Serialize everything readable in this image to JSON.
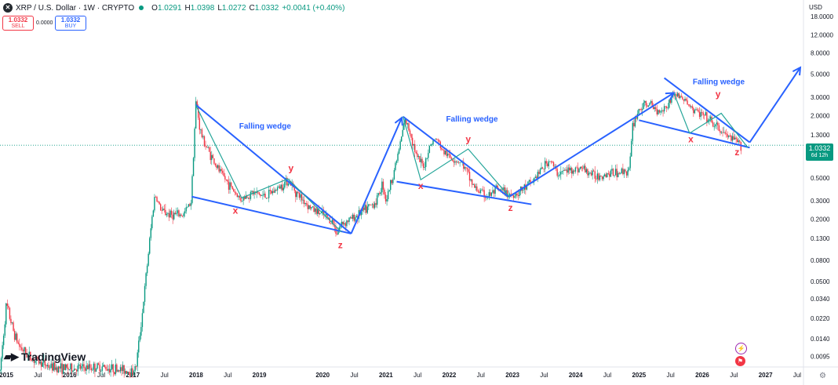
{
  "header": {
    "symbol": "XRP / U.S. Dollar · 1W · CRYPTO",
    "o_label": "O",
    "o": "1.0291",
    "h_label": "H",
    "h": "1.0398",
    "l_label": "L",
    "l": "1.0272",
    "c_label": "C",
    "c": "1.0332",
    "change": "+0.0041 (+0.40%)"
  },
  "trade": {
    "sell_price": "1.0332",
    "sell_label": "SELL",
    "spread": "0.0000",
    "buy_price": "1.0332",
    "buy_label": "BUY"
  },
  "price_tag": {
    "price": "1.0332",
    "countdown": "6d 12h"
  },
  "currency": "USD",
  "brand": "TradingView",
  "colors": {
    "up": "#089981",
    "down": "#f23645",
    "annotation": "#2962ff",
    "inner_line": "#26a69a",
    "label_red": "#f23645"
  },
  "chart_data": {
    "type": "line",
    "scale": "log",
    "ylim": [
      0.0075,
      26
    ],
    "xlim": [
      2014.9,
      2027.6
    ],
    "y_ticks": [
      {
        "v": 18,
        "label": "18.0000"
      },
      {
        "v": 12,
        "label": "12.0000"
      },
      {
        "v": 8,
        "label": "8.0000"
      },
      {
        "v": 5,
        "label": "5.0000"
      },
      {
        "v": 3,
        "label": "3.0000"
      },
      {
        "v": 2,
        "label": "2.0000"
      },
      {
        "v": 1.3,
        "label": "1.3000"
      },
      {
        "v": 0.8,
        "label": "0.8000"
      },
      {
        "v": 0.5,
        "label": "0.5000"
      },
      {
        "v": 0.3,
        "label": "0.3000"
      },
      {
        "v": 0.2,
        "label": "0.2000"
      },
      {
        "v": 0.13,
        "label": "0.1300"
      },
      {
        "v": 0.08,
        "label": "0.0800"
      },
      {
        "v": 0.05,
        "label": "0.0500"
      },
      {
        "v": 0.034,
        "label": "0.0340"
      },
      {
        "v": 0.022,
        "label": "0.0220"
      },
      {
        "v": 0.014,
        "label": "0.0140"
      },
      {
        "v": 0.0095,
        "label": "0.0095"
      }
    ],
    "x_ticks": [
      {
        "t": 2015.0,
        "label": "2015",
        "bold": true
      },
      {
        "t": 2015.5,
        "label": "Jul",
        "bold": false
      },
      {
        "t": 2016.0,
        "label": "2016",
        "bold": true
      },
      {
        "t": 2016.5,
        "label": "Jul",
        "bold": false
      },
      {
        "t": 2017.0,
        "label": "2017",
        "bold": true
      },
      {
        "t": 2017.5,
        "label": "Jul",
        "bold": false
      },
      {
        "t": 2018.0,
        "label": "2018",
        "bold": true
      },
      {
        "t": 2018.5,
        "label": "Jul",
        "bold": false
      },
      {
        "t": 2019.0,
        "label": "2019",
        "bold": true
      },
      {
        "t": 2020.0,
        "label": "2020",
        "bold": true
      },
      {
        "t": 2020.5,
        "label": "Jul",
        "bold": false
      },
      {
        "t": 2021.0,
        "label": "2021",
        "bold": true
      },
      {
        "t": 2021.5,
        "label": "Jul",
        "bold": false
      },
      {
        "t": 2022.0,
        "label": "2022",
        "bold": true
      },
      {
        "t": 2022.5,
        "label": "Jul",
        "bold": false
      },
      {
        "t": 2023.0,
        "label": "2023",
        "bold": true
      },
      {
        "t": 2023.5,
        "label": "Jul",
        "bold": false
      },
      {
        "t": 2024.0,
        "label": "2024",
        "bold": true
      },
      {
        "t": 2024.5,
        "label": "Jul",
        "bold": false
      },
      {
        "t": 2025.0,
        "label": "2025",
        "bold": true
      },
      {
        "t": 2025.5,
        "label": "Jul",
        "bold": false
      },
      {
        "t": 2026.0,
        "label": "2026",
        "bold": true
      },
      {
        "t": 2026.5,
        "label": "Jul",
        "bold": false
      },
      {
        "t": 2027.0,
        "label": "2027",
        "bold": true
      },
      {
        "t": 2027.5,
        "label": "Jul",
        "bold": false
      }
    ],
    "price_path": [
      [
        2014.9,
        0.0068
      ],
      [
        2015.0,
        0.03
      ],
      [
        2015.06,
        0.022
      ],
      [
        2015.12,
        0.016
      ],
      [
        2015.2,
        0.012
      ],
      [
        2015.4,
        0.009
      ],
      [
        2015.7,
        0.0075
      ],
      [
        2016.0,
        0.0072
      ],
      [
        2016.5,
        0.0075
      ],
      [
        2017.0,
        0.0068
      ],
      [
        2017.05,
        0.0075
      ],
      [
        2017.15,
        0.025
      ],
      [
        2017.25,
        0.1
      ],
      [
        2017.3,
        0.2
      ],
      [
        2017.35,
        0.35
      ],
      [
        2017.45,
        0.24
      ],
      [
        2017.6,
        0.22
      ],
      [
        2017.8,
        0.22
      ],
      [
        2017.92,
        0.3
      ],
      [
        2018.0,
        2.9
      ],
      [
        2018.05,
        1.6
      ],
      [
        2018.1,
        1.2
      ],
      [
        2018.2,
        0.9
      ],
      [
        2018.35,
        0.6
      ],
      [
        2018.5,
        0.45
      ],
      [
        2018.7,
        0.31
      ],
      [
        2018.9,
        0.36
      ],
      [
        2019.1,
        0.33
      ],
      [
        2019.3,
        0.4
      ],
      [
        2019.45,
        0.48
      ],
      [
        2019.6,
        0.35
      ],
      [
        2019.8,
        0.26
      ],
      [
        2020.0,
        0.22
      ],
      [
        2020.15,
        0.19
      ],
      [
        2020.22,
        0.15
      ],
      [
        2020.3,
        0.18
      ],
      [
        2020.5,
        0.21
      ],
      [
        2020.7,
        0.25
      ],
      [
        2020.85,
        0.3
      ],
      [
        2020.95,
        0.45
      ],
      [
        2021.0,
        0.3
      ],
      [
        2021.1,
        0.5
      ],
      [
        2021.2,
        0.9
      ],
      [
        2021.3,
        1.8
      ],
      [
        2021.38,
        1.4
      ],
      [
        2021.5,
        0.75
      ],
      [
        2021.6,
        0.65
      ],
      [
        2021.7,
        1.05
      ],
      [
        2021.8,
        1.2
      ],
      [
        2021.9,
        0.9
      ],
      [
        2022.0,
        0.8
      ],
      [
        2022.2,
        0.7
      ],
      [
        2022.4,
        0.4
      ],
      [
        2022.6,
        0.33
      ],
      [
        2022.75,
        0.38
      ],
      [
        2022.9,
        0.36
      ],
      [
        2023.0,
        0.34
      ],
      [
        2023.15,
        0.38
      ],
      [
        2023.3,
        0.45
      ],
      [
        2023.5,
        0.65
      ],
      [
        2023.6,
        0.75
      ],
      [
        2023.7,
        0.55
      ],
      [
        2023.9,
        0.6
      ],
      [
        2024.1,
        0.62
      ],
      [
        2024.3,
        0.52
      ],
      [
        2024.5,
        0.55
      ],
      [
        2024.7,
        0.57
      ],
      [
        2024.85,
        0.6
      ],
      [
        2024.9,
        1.6
      ],
      [
        2025.0,
        2.3
      ],
      [
        2025.15,
        2.6
      ],
      [
        2025.3,
        2.2
      ],
      [
        2025.45,
        2.5
      ],
      [
        2025.55,
        3.3
      ],
      [
        2025.7,
        2.9
      ],
      [
        2025.85,
        2.3
      ],
      [
        2026.0,
        2.0
      ],
      [
        2026.15,
        1.7
      ],
      [
        2026.3,
        1.4
      ],
      [
        2026.45,
        1.2
      ],
      [
        2026.55,
        1.1
      ],
      [
        2026.62,
        1.0332
      ]
    ],
    "current_price": 1.0332,
    "annotations": {
      "wedge_lines": [
        [
          [
            2017.99,
            2.55
          ],
          [
            2020.45,
            0.145
          ]
        ],
        [
          [
            2017.93,
            0.33
          ],
          [
            2020.45,
            0.145
          ]
        ],
        [
          [
            2021.27,
            1.95
          ],
          [
            2022.93,
            0.33
          ]
        ],
        [
          [
            2021.17,
            0.46
          ],
          [
            2023.3,
            0.278
          ]
        ],
        [
          [
            2025.4,
            4.6
          ],
          [
            2026.75,
            1.1
          ]
        ],
        [
          [
            2025.0,
            1.8
          ],
          [
            2026.75,
            0.98
          ]
        ]
      ],
      "inner_lines": [
        [
          [
            2017.99,
            2.55
          ],
          [
            2018.72,
            0.32
          ],
          [
            2019.45,
            0.49
          ],
          [
            2020.3,
            0.15
          ]
        ],
        [
          [
            2021.27,
            1.95
          ],
          [
            2021.55,
            0.48
          ],
          [
            2022.3,
            0.95
          ],
          [
            2022.95,
            0.33
          ]
        ],
        [
          [
            2025.55,
            3.3
          ],
          [
            2025.8,
            1.35
          ],
          [
            2026.3,
            2.1
          ],
          [
            2026.72,
            0.98
          ]
        ]
      ],
      "arrows": [
        [
          [
            2020.45,
            0.145
          ],
          [
            2021.25,
            1.9
          ]
        ],
        [
          [
            2022.95,
            0.33
          ],
          [
            2025.55,
            3.3
          ]
        ],
        [
          [
            2026.75,
            1.1
          ],
          [
            2027.55,
            5.8
          ]
        ]
      ],
      "labels": [
        {
          "text": "Falling wedge",
          "t": 2018.68,
          "v": 1.5,
          "kind": "title"
        },
        {
          "text": "Falling wedge",
          "t": 2021.95,
          "v": 1.75,
          "kind": "title"
        },
        {
          "text": "Falling wedge",
          "t": 2025.85,
          "v": 4.0,
          "kind": "title"
        },
        {
          "text": "x",
          "t": 2018.62,
          "v": 0.225,
          "kind": "point"
        },
        {
          "text": "y",
          "t": 2019.5,
          "v": 0.58,
          "kind": "point"
        },
        {
          "text": "z",
          "t": 2020.28,
          "v": 0.105,
          "kind": "point"
        },
        {
          "text": "x",
          "t": 2021.55,
          "v": 0.39,
          "kind": "point"
        },
        {
          "text": "y",
          "t": 2022.3,
          "v": 1.1,
          "kind": "point"
        },
        {
          "text": "z",
          "t": 2022.97,
          "v": 0.24,
          "kind": "point"
        },
        {
          "text": "x",
          "t": 2025.82,
          "v": 1.1,
          "kind": "point"
        },
        {
          "text": "y",
          "t": 2026.25,
          "v": 3.0,
          "kind": "point"
        },
        {
          "text": "z",
          "t": 2026.55,
          "v": 0.83,
          "kind": "point"
        }
      ]
    }
  }
}
